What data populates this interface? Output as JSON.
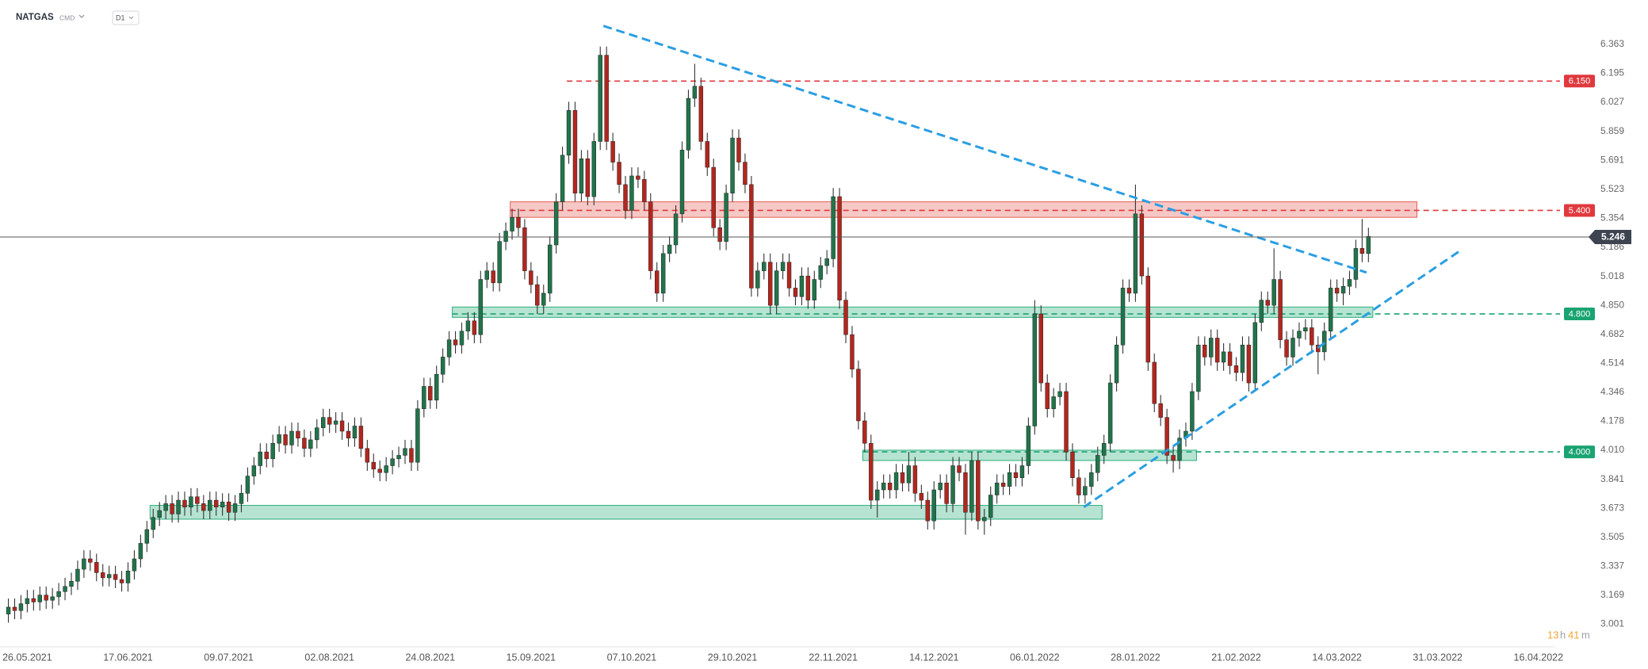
{
  "header": {
    "symbol": "NATGAS",
    "market": "CMD",
    "interval": "D1"
  },
  "countdown": {
    "hours": "13",
    "hours_unit": "h",
    "minutes": "41",
    "minutes_unit": "m"
  },
  "chart_data": {
    "type": "candlestick",
    "up_color": "#21744b",
    "down_color": "#b3261e",
    "wick_color": "#333333",
    "xlim": [
      -1.33,
      245.67
    ],
    "ylim": [
      2.87,
      6.62
    ],
    "grid": false,
    "yticks": [
      3.001,
      3.169,
      3.337,
      3.505,
      3.673,
      3.841,
      {
        "value": 4.01,
        "label": "4.010"
      },
      4.178,
      4.346,
      4.514,
      4.682,
      {
        "value": 4.85,
        "label": "4.850"
      },
      5.018,
      5.186,
      5.354,
      5.523,
      5.691,
      5.859,
      6.027,
      6.195,
      6.363
    ],
    "xticks": [
      {
        "value": 3,
        "label": "26.05.2021"
      },
      {
        "value": 19,
        "label": "17.06.2021"
      },
      {
        "value": 35,
        "label": "09.07.2021"
      },
      {
        "value": 51,
        "label": "02.08.2021"
      },
      {
        "value": 67,
        "label": "24.08.2021"
      },
      {
        "value": 83,
        "label": "15.09.2021"
      },
      {
        "value": 99,
        "label": "07.10.2021"
      },
      {
        "value": 115,
        "label": "29.10.2021"
      },
      {
        "value": 131,
        "label": "22.11.2021"
      },
      {
        "value": 147,
        "label": "14.12.2021"
      },
      {
        "value": 163,
        "label": "06.01.2022"
      },
      {
        "value": 179,
        "label": "28.01.2022"
      },
      {
        "value": 195,
        "label": "21.02.2022"
      },
      {
        "value": 211,
        "label": "14.03.2022"
      },
      {
        "value": 227,
        "label": "31.03.2022"
      },
      {
        "value": 243,
        "label": "16.04.2022"
      }
    ],
    "open": [
      3.06,
      3.1,
      3.08,
      3.12,
      3.15,
      3.13,
      3.17,
      3.14,
      3.16,
      3.19,
      3.22,
      3.25,
      3.32,
      3.38,
      3.36,
      3.3,
      3.27,
      3.29,
      3.26,
      3.24,
      3.31,
      3.38,
      3.47,
      3.55,
      3.62,
      3.66,
      3.7,
      3.64,
      3.72,
      3.68,
      3.74,
      3.7,
      3.66,
      3.72,
      3.68,
      3.71,
      3.65,
      3.7,
      3.76,
      3.86,
      3.92,
      4.0,
      3.96,
      4.05,
      4.1,
      4.04,
      4.12,
      4.08,
      4.02,
      4.07,
      4.14,
      4.2,
      4.16,
      4.18,
      4.12,
      4.08,
      4.15,
      4.02,
      3.94,
      3.9,
      3.88,
      3.92,
      3.96,
      3.98,
      4.02,
      3.94,
      4.25,
      4.38,
      4.3,
      4.45,
      4.55,
      4.65,
      4.62,
      4.7,
      4.76,
      4.68,
      5.0,
      5.05,
      4.98,
      5.22,
      5.28,
      5.36,
      5.3,
      5.05,
      4.97,
      4.85,
      4.92,
      5.2,
      5.45,
      5.72,
      5.98,
      5.5,
      5.7,
      5.48,
      5.8,
      6.3,
      5.8,
      5.68,
      5.55,
      5.4,
      5.6,
      5.58,
      5.45,
      5.05,
      4.92,
      5.15,
      5.2,
      5.38,
      5.75,
      6.05,
      6.12,
      5.8,
      5.65,
      5.3,
      5.22,
      5.5,
      5.82,
      5.68,
      5.55,
      4.95,
      5.05,
      5.1,
      4.85,
      5.05,
      5.1,
      4.95,
      4.9,
      5.02,
      4.88,
      5.0,
      5.08,
      5.12,
      5.48,
      4.88,
      4.68,
      4.48,
      4.18,
      4.05,
      3.72,
      3.78,
      3.82,
      3.78,
      3.88,
      3.82,
      3.92,
      3.76,
      3.72,
      3.6,
      3.78,
      3.82,
      3.7,
      3.92,
      3.88,
      3.65,
      3.95,
      3.6,
      3.62,
      3.75,
      3.82,
      3.8,
      3.88,
      3.85,
      3.92,
      4.15,
      4.8,
      4.4,
      4.25,
      4.32,
      4.35,
      4.0,
      3.85,
      3.75,
      3.8,
      3.88,
      3.98,
      4.05,
      4.4,
      4.62,
      4.95,
      4.92,
      5.38,
      5.02,
      4.52,
      4.28,
      4.2,
      3.98,
      3.95,
      4.08,
      4.12,
      4.35,
      4.62,
      4.55,
      4.66,
      4.52,
      4.58,
      4.5,
      4.46,
      4.62,
      4.4,
      4.75,
      4.88,
      4.85,
      5.0,
      4.65,
      4.55,
      4.66,
      4.7,
      4.72,
      4.62,
      4.58,
      4.7,
      4.95,
      4.92,
      4.96,
      5.0,
      5.18,
      5.15
    ],
    "high": [
      3.15,
      3.15,
      3.17,
      3.2,
      3.2,
      3.22,
      3.22,
      3.21,
      3.24,
      3.27,
      3.3,
      3.37,
      3.43,
      3.43,
      3.41,
      3.35,
      3.34,
      3.34,
      3.31,
      3.36,
      3.43,
      3.52,
      3.6,
      3.67,
      3.71,
      3.75,
      3.75,
      3.77,
      3.77,
      3.79,
      3.79,
      3.75,
      3.77,
      3.77,
      3.76,
      3.76,
      3.75,
      3.81,
      3.91,
      3.97,
      4.05,
      4.05,
      4.1,
      4.15,
      4.15,
      4.17,
      4.17,
      4.13,
      4.12,
      4.19,
      4.25,
      4.25,
      4.23,
      4.23,
      4.17,
      4.2,
      4.2,
      4.07,
      3.99,
      3.95,
      3.97,
      4.01,
      4.03,
      4.07,
      4.07,
      4.3,
      4.43,
      4.43,
      4.5,
      4.6,
      4.7,
      4.7,
      4.75,
      4.81,
      4.81,
      5.05,
      5.1,
      5.1,
      5.27,
      5.33,
      5.41,
      5.41,
      5.35,
      5.1,
      5.02,
      4.97,
      5.25,
      5.5,
      5.77,
      6.03,
      6.03,
      5.75,
      5.75,
      5.85,
      6.35,
      6.35,
      5.85,
      5.73,
      5.6,
      5.65,
      5.65,
      5.63,
      5.5,
      5.1,
      5.2,
      5.25,
      5.43,
      5.8,
      6.1,
      6.25,
      6.17,
      5.85,
      5.7,
      5.35,
      5.55,
      5.87,
      5.87,
      5.73,
      5.6,
      5.1,
      5.15,
      5.15,
      5.1,
      5.15,
      5.15,
      5.0,
      5.07,
      5.07,
      5.05,
      5.13,
      5.17,
      5.53,
      5.53,
      4.93,
      4.73,
      4.53,
      4.23,
      4.1,
      3.83,
      3.87,
      3.87,
      3.93,
      3.93,
      4.0,
      3.97,
      3.81,
      3.77,
      3.83,
      3.87,
      3.87,
      3.97,
      3.97,
      3.93,
      4.0,
      4.0,
      3.67,
      3.8,
      3.87,
      3.87,
      3.93,
      3.93,
      3.97,
      4.2,
      4.88,
      4.85,
      4.45,
      4.37,
      4.4,
      4.4,
      4.05,
      3.9,
      3.85,
      3.93,
      4.03,
      4.1,
      4.45,
      4.67,
      5.0,
      5.0,
      5.55,
      5.43,
      5.07,
      4.57,
      4.33,
      4.25,
      4.03,
      4.13,
      4.17,
      4.4,
      4.67,
      4.67,
      4.71,
      4.71,
      4.63,
      4.63,
      4.55,
      4.67,
      4.67,
      4.8,
      4.93,
      4.93,
      5.18,
      5.05,
      4.7,
      4.71,
      4.75,
      4.77,
      4.77,
      4.67,
      4.75,
      5.0,
      5.0,
      5.01,
      5.05,
      5.23,
      5.35,
      5.3
    ],
    "low": [
      3.01,
      3.03,
      3.03,
      3.07,
      3.08,
      3.08,
      3.09,
      3.09,
      3.11,
      3.14,
      3.17,
      3.2,
      3.27,
      3.31,
      3.25,
      3.22,
      3.22,
      3.21,
      3.19,
      3.19,
      3.26,
      3.33,
      3.42,
      3.5,
      3.57,
      3.61,
      3.59,
      3.59,
      3.63,
      3.63,
      3.65,
      3.61,
      3.61,
      3.63,
      3.63,
      3.6,
      3.6,
      3.65,
      3.71,
      3.81,
      3.87,
      3.91,
      3.91,
      4.0,
      3.99,
      3.99,
      4.03,
      3.97,
      3.97,
      4.02,
      4.09,
      4.11,
      4.11,
      4.07,
      4.03,
      4.03,
      3.97,
      3.89,
      3.85,
      3.83,
      3.83,
      3.87,
      3.91,
      3.93,
      3.89,
      3.89,
      4.2,
      4.25,
      4.25,
      4.4,
      4.5,
      4.57,
      4.57,
      4.65,
      4.63,
      4.63,
      4.95,
      4.93,
      4.93,
      5.17,
      5.23,
      5.25,
      5.0,
      4.92,
      4.8,
      4.8,
      4.87,
      5.15,
      5.4,
      5.67,
      5.45,
      5.45,
      5.43,
      5.43,
      5.75,
      5.75,
      5.63,
      5.5,
      5.35,
      5.35,
      5.53,
      5.4,
      5.0,
      4.87,
      4.87,
      5.1,
      5.15,
      5.33,
      5.7,
      6.0,
      5.75,
      5.6,
      5.25,
      5.17,
      5.17,
      5.45,
      5.63,
      5.5,
      4.9,
      4.9,
      5.0,
      4.8,
      4.8,
      5.0,
      4.9,
      4.85,
      4.85,
      4.83,
      4.83,
      4.95,
      5.03,
      5.07,
      4.83,
      4.63,
      4.43,
      4.13,
      4.0,
      3.67,
      3.62,
      3.73,
      3.73,
      3.73,
      3.77,
      3.77,
      3.71,
      3.67,
      3.55,
      3.55,
      3.73,
      3.65,
      3.65,
      3.83,
      3.52,
      3.6,
      3.55,
      3.52,
      3.57,
      3.7,
      3.75,
      3.75,
      3.8,
      3.8,
      3.87,
      4.1,
      4.35,
      4.2,
      4.2,
      4.27,
      3.95,
      3.8,
      3.7,
      3.7,
      3.75,
      3.83,
      3.93,
      4.0,
      4.35,
      4.57,
      4.87,
      4.87,
      4.97,
      4.47,
      4.23,
      4.15,
      3.93,
      3.88,
      3.9,
      4.03,
      4.07,
      4.3,
      4.5,
      4.5,
      4.47,
      4.47,
      4.45,
      4.41,
      4.41,
      4.35,
      4.35,
      4.7,
      4.8,
      4.8,
      4.6,
      4.5,
      4.5,
      4.61,
      4.65,
      4.57,
      4.45,
      4.53,
      4.65,
      4.87,
      4.85,
      4.91,
      4.95,
      5.1,
      5.1
    ],
    "close": [
      3.1,
      3.08,
      3.12,
      3.15,
      3.13,
      3.17,
      3.14,
      3.16,
      3.19,
      3.22,
      3.25,
      3.32,
      3.38,
      3.36,
      3.3,
      3.27,
      3.29,
      3.26,
      3.24,
      3.31,
      3.38,
      3.47,
      3.55,
      3.62,
      3.66,
      3.7,
      3.64,
      3.72,
      3.68,
      3.74,
      3.7,
      3.66,
      3.72,
      3.68,
      3.71,
      3.65,
      3.7,
      3.76,
      3.86,
      3.92,
      4.0,
      3.96,
      4.05,
      4.1,
      4.04,
      4.12,
      4.08,
      4.02,
      4.07,
      4.14,
      4.2,
      4.16,
      4.18,
      4.12,
      4.08,
      4.15,
      4.02,
      3.94,
      3.9,
      3.88,
      3.92,
      3.96,
      3.98,
      4.02,
      3.94,
      4.25,
      4.38,
      4.3,
      4.45,
      4.55,
      4.65,
      4.62,
      4.7,
      4.76,
      4.68,
      5.0,
      5.05,
      4.98,
      5.22,
      5.28,
      5.36,
      5.3,
      5.05,
      4.97,
      4.85,
      4.92,
      5.2,
      5.45,
      5.72,
      5.98,
      5.5,
      5.7,
      5.48,
      5.8,
      6.3,
      5.8,
      5.68,
      5.55,
      5.4,
      5.6,
      5.58,
      5.45,
      5.05,
      4.92,
      5.15,
      5.2,
      5.38,
      5.75,
      6.05,
      6.12,
      5.8,
      5.65,
      5.3,
      5.22,
      5.5,
      5.82,
      5.68,
      5.55,
      4.95,
      5.05,
      5.1,
      4.85,
      5.05,
      5.1,
      4.95,
      4.9,
      5.02,
      4.88,
      5.0,
      5.08,
      5.12,
      5.48,
      4.88,
      4.68,
      4.48,
      4.18,
      4.05,
      3.72,
      3.78,
      3.82,
      3.78,
      3.88,
      3.82,
      3.92,
      3.76,
      3.72,
      3.6,
      3.78,
      3.82,
      3.7,
      3.92,
      3.88,
      3.65,
      3.95,
      3.6,
      3.62,
      3.75,
      3.82,
      3.8,
      3.88,
      3.85,
      3.92,
      4.15,
      4.8,
      4.4,
      4.25,
      4.32,
      4.35,
      4.0,
      3.85,
      3.75,
      3.8,
      3.88,
      3.98,
      4.05,
      4.4,
      4.62,
      4.95,
      4.92,
      5.38,
      5.02,
      4.52,
      4.28,
      4.2,
      3.98,
      3.95,
      4.08,
      4.12,
      4.35,
      4.62,
      4.55,
      4.66,
      4.52,
      4.58,
      4.5,
      4.46,
      4.62,
      4.4,
      4.75,
      4.88,
      4.85,
      5.0,
      4.65,
      4.55,
      4.66,
      4.7,
      4.72,
      4.62,
      4.58,
      4.7,
      4.95,
      4.92,
      4.96,
      5.0,
      5.18,
      5.15,
      5.25
    ],
    "zones": [
      {
        "ylim": [
          5.36,
          5.45
        ],
        "xlim": [
          79.7,
          223.7
        ],
        "color": "#e5605a"
      },
      {
        "ylim": [
          4.78,
          4.84
        ],
        "xlim": [
          70.5,
          216.7
        ],
        "color": "#2fae7e"
      },
      {
        "ylim": [
          3.95,
          4.01
        ],
        "xlim": [
          135.7,
          188.7
        ],
        "color": "#2fae7e"
      },
      {
        "ylim": [
          3.61,
          3.69
        ],
        "xlim": [
          22.5,
          173.7
        ],
        "color": "#2fae7e"
      }
    ],
    "levels": [
      {
        "value": {
          "value": 6.15,
          "label": "6.150"
        },
        "from": 88.7,
        "color": "#e0393e"
      },
      {
        "value": {
          "value": 5.4,
          "label": "5.400"
        },
        "from": 79.7,
        "color": "#e0393e"
      },
      {
        "value": {
          "value": 4.8,
          "label": "4.800"
        },
        "from": 70.5,
        "color": "#19a472"
      },
      {
        "value": {
          "value": 4.0,
          "label": "4.000"
        },
        "from": 135.7,
        "color": "#19a472"
      }
    ],
    "trendlines": [
      {
        "x": [
          94.5,
          215.7
        ],
        "y": [
          6.47,
          5.04
        ],
        "color": "#2a9ee3"
      },
      {
        "x": [
          170.8,
          230.7
        ],
        "y": [
          3.68,
          5.17
        ],
        "color": "#2a9ee3"
      }
    ],
    "last_price": 5.246,
    "last_price_color": "#3d4450"
  }
}
